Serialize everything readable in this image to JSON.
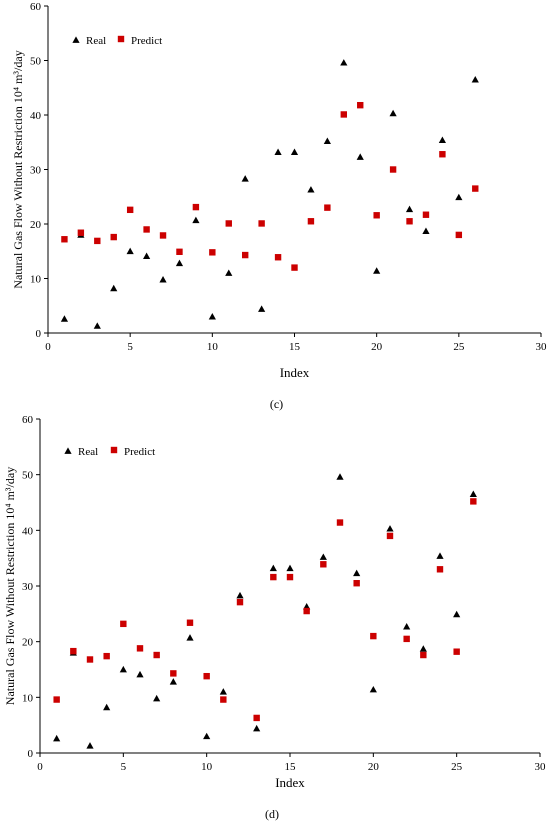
{
  "chart_data": [
    {
      "type": "scatter",
      "panel_label": "(c)",
      "xlabel": "Index",
      "ylabel": "Natural Gas Flow Without Restriction 10⁴ m³/day",
      "xlim": [
        0,
        30
      ],
      "ylim": [
        0,
        60
      ],
      "xticks": [
        0,
        5,
        10,
        15,
        20,
        25,
        30
      ],
      "yticks": [
        0,
        10,
        20,
        30,
        40,
        50,
        60
      ],
      "grid": false,
      "legend_position": "top-left",
      "series": [
        {
          "name": "Real",
          "marker": "triangle",
          "color": "#000000",
          "x": [
            1,
            2,
            3,
            4,
            5,
            6,
            7,
            8,
            9,
            10,
            11,
            12,
            13,
            14,
            15,
            16,
            17,
            18,
            19,
            20,
            21,
            22,
            23,
            24,
            25,
            26
          ],
          "y": [
            2.6,
            18,
            1.3,
            8.2,
            15,
            14.1,
            9.8,
            12.8,
            20.7,
            3,
            11,
            28.3,
            4.4,
            33.2,
            33.2,
            26.3,
            35.2,
            49.6,
            32.3,
            11.4,
            40.3,
            22.7,
            18.7,
            35.4,
            24.9,
            46.5
          ]
        },
        {
          "name": "Predict",
          "marker": "square",
          "color": "#cc0000",
          "x": [
            1,
            2,
            3,
            4,
            5,
            6,
            7,
            8,
            9,
            10,
            11,
            12,
            13,
            14,
            15,
            16,
            17,
            18,
            19,
            20,
            21,
            22,
            23,
            24,
            25,
            26
          ],
          "y": [
            17.2,
            18.4,
            16.9,
            17.6,
            22.6,
            19,
            17.9,
            14.9,
            23.1,
            14.8,
            20.1,
            14.3,
            20.1,
            13.9,
            12,
            20.5,
            23,
            40.1,
            41.8,
            21.6,
            30,
            20.5,
            21.7,
            32.8,
            18,
            26.5
          ]
        }
      ]
    },
    {
      "type": "scatter",
      "panel_label": "(d)",
      "xlabel": "Index",
      "ylabel": "Natural Gas Flow Without Restriction 10⁴ m³/day",
      "xlim": [
        0,
        30
      ],
      "ylim": [
        0,
        60
      ],
      "xticks": [
        0,
        5,
        10,
        15,
        20,
        25,
        30
      ],
      "yticks": [
        0,
        10,
        20,
        30,
        40,
        50,
        60
      ],
      "grid": false,
      "legend_position": "top-left",
      "series": [
        {
          "name": "Real",
          "marker": "triangle",
          "color": "#000000",
          "x": [
            1,
            2,
            3,
            4,
            5,
            6,
            7,
            8,
            9,
            10,
            11,
            12,
            13,
            14,
            15,
            16,
            17,
            18,
            19,
            20,
            21,
            22,
            23,
            24,
            25,
            26
          ],
          "y": [
            2.6,
            18,
            1.3,
            8.2,
            15,
            14.1,
            9.8,
            12.8,
            20.7,
            3,
            11,
            28.3,
            4.4,
            33.2,
            33.2,
            26.3,
            35.2,
            49.6,
            32.3,
            11.4,
            40.3,
            22.7,
            18.7,
            35.4,
            24.9,
            46.5
          ]
        },
        {
          "name": "Predict",
          "marker": "square",
          "color": "#cc0000",
          "x": [
            1,
            2,
            3,
            4,
            5,
            6,
            7,
            8,
            9,
            10,
            11,
            12,
            13,
            14,
            15,
            16,
            17,
            18,
            19,
            20,
            21,
            22,
            23,
            24,
            25,
            26
          ],
          "y": [
            9.6,
            18.3,
            16.8,
            17.4,
            23.2,
            18.8,
            17.6,
            14.3,
            23.4,
            13.8,
            9.6,
            27.1,
            6.3,
            31.6,
            31.6,
            25.5,
            33.9,
            41.4,
            30.5,
            21,
            39,
            20.5,
            17.6,
            33,
            18.2,
            45.2
          ]
        }
      ]
    }
  ]
}
